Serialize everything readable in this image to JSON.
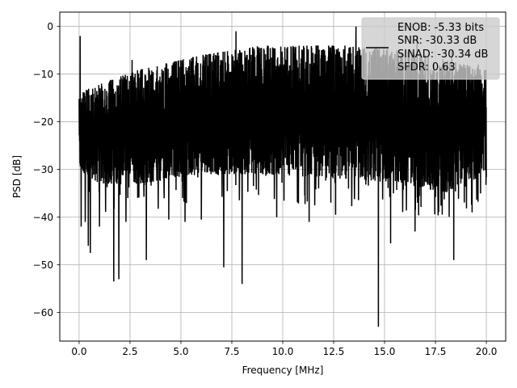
{
  "chart_data": {
    "type": "line",
    "title": "",
    "xlabel": "Frequency [MHz]",
    "ylabel": "PSD [dB]",
    "xlim": [
      -0.95,
      20.95
    ],
    "ylim": [
      -66,
      3
    ],
    "xticks": [
      0.0,
      2.5,
      5.0,
      7.5,
      10.0,
      12.5,
      15.0,
      17.5,
      20.0
    ],
    "xtick_labels": [
      "0.0",
      "2.5",
      "5.0",
      "7.5",
      "10.0",
      "12.5",
      "15.0",
      "17.5",
      "20.0"
    ],
    "yticks": [
      0,
      -10,
      -20,
      -30,
      -40,
      -50,
      -60
    ],
    "ytick_labels": [
      "0",
      "−10",
      "−20",
      "−30",
      "−40",
      "−50",
      "−60"
    ],
    "grid": true,
    "legend_position": "top-right",
    "series": [
      {
        "name": "ENOB: -5.33 bits\nSNR: -30.33 dB\nSINAD: -30.34 dB\nSFDR: 0.63",
        "legend_lines": [
          "ENOB: -5.33 bits",
          "SNR: -30.33 dB",
          "SINAD: -30.34 dB",
          "SFDR: 0.63"
        ],
        "color": "#000000",
        "x_range": [
          0,
          20
        ],
        "n_points": 2400,
        "upper_envelope": [
          [
            0,
            -14
          ],
          [
            1,
            -12
          ],
          [
            3,
            -9
          ],
          [
            6,
            -6
          ],
          [
            9,
            -4
          ],
          [
            13,
            -4
          ],
          [
            16,
            -5
          ],
          [
            18,
            -7
          ],
          [
            20,
            -9
          ]
        ],
        "lower_envelope": [
          [
            0,
            -30
          ],
          [
            1,
            -33
          ],
          [
            3,
            -33
          ],
          [
            6,
            -31
          ],
          [
            9,
            -31
          ],
          [
            13,
            -32
          ],
          [
            16,
            -33
          ],
          [
            18,
            -35
          ],
          [
            20,
            -30
          ]
        ],
        "peaks": [
          [
            0.05,
            -2
          ],
          [
            7.7,
            -1
          ],
          [
            13.6,
            0
          ],
          [
            16.6,
            -2
          ],
          [
            18.3,
            -5
          ],
          [
            19.6,
            -8
          ],
          [
            2.6,
            -7
          ],
          [
            4.4,
            -6
          ]
        ],
        "dips": [
          [
            0.1,
            -42
          ],
          [
            0.3,
            -41
          ],
          [
            0.45,
            -46
          ],
          [
            0.55,
            -47.5
          ],
          [
            1.0,
            -42
          ],
          [
            1.7,
            -53.5
          ],
          [
            1.95,
            -53
          ],
          [
            2.3,
            -41
          ],
          [
            3.3,
            -49
          ],
          [
            4.4,
            -40.5
          ],
          [
            5.2,
            -41
          ],
          [
            6.0,
            -40.5
          ],
          [
            7.1,
            -50.5
          ],
          [
            8.0,
            -54
          ],
          [
            9.7,
            -40
          ],
          [
            11.3,
            -41
          ],
          [
            12.6,
            -39.5
          ],
          [
            14.7,
            -63
          ],
          [
            15.3,
            -45.5
          ],
          [
            16.5,
            -43
          ],
          [
            18.4,
            -49
          ],
          [
            19.3,
            -39
          ]
        ]
      }
    ]
  }
}
